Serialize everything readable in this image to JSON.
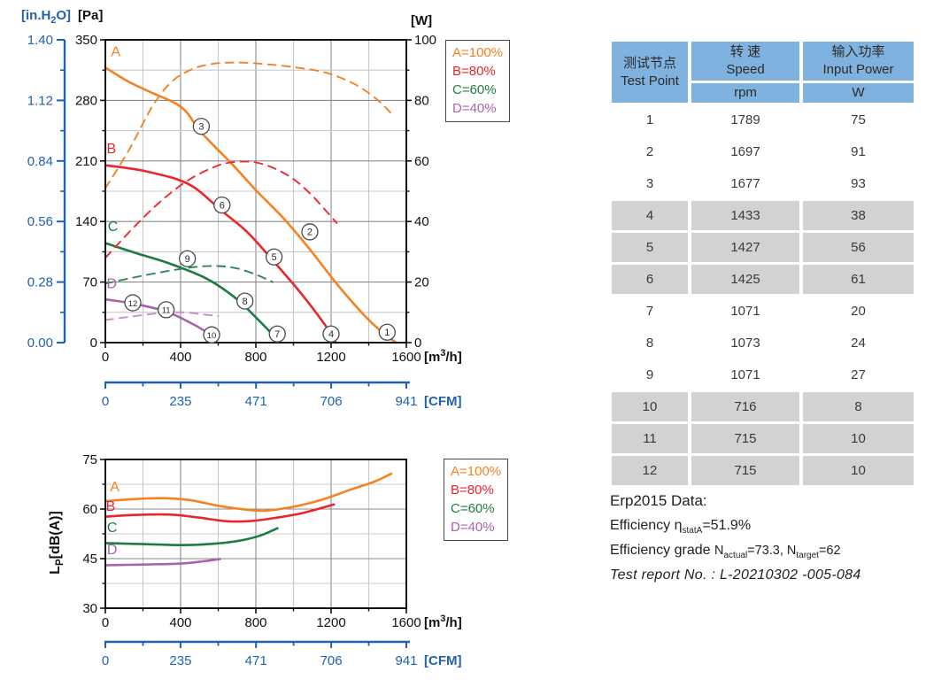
{
  "colors": {
    "A": "#F58220",
    "B": "#E8262C",
    "C": "#1E7B41",
    "D": "#A963AB",
    "A_dash": "#F58220",
    "B_dash": "#ED2B2F",
    "C_dash": "#2E8653",
    "D_dash": "#C490C6",
    "blue_axis": "#2261AE",
    "axis": "#111111",
    "grid_major": "#8A8A8A",
    "grid_minor": "#C8C8C8",
    "table_header_bg": "#7FB2DE",
    "table_shade_bg": "#D2D2D0",
    "marker_stroke": "#4a4a4a"
  },
  "legend_items": [
    {
      "key": "A",
      "label": "A=100%"
    },
    {
      "key": "B",
      "label": "B=80%"
    },
    {
      "key": "C",
      "label": "C=60%"
    },
    {
      "key": "D",
      "label": "D=40%"
    }
  ],
  "chart_data": [
    {
      "type": "line",
      "name": "pressure-and-power-curves",
      "x_axis": {
        "unit_parts": [
          "[m",
          "3",
          "/h]"
        ],
        "min": 0,
        "max": 1600,
        "majors": [
          0,
          400,
          800,
          1200,
          1600
        ],
        "minor_step": 200
      },
      "cfm_axis": {
        "unit": "[CFM]",
        "max": 941,
        "majors": [
          0,
          235,
          471,
          706,
          941
        ]
      },
      "left_axis": {
        "unit": "[Pa]",
        "min": 0,
        "max": 350,
        "majors": [
          0,
          70,
          140,
          210,
          280,
          350
        ],
        "minor_step": 35
      },
      "left_axis2": {
        "unit_parts": [
          "[in.H",
          "2",
          "O]"
        ],
        "labels": [
          "0.00",
          "0.28",
          "0.56",
          "0.84",
          "1.12",
          "1.40"
        ]
      },
      "right_axis": {
        "unit": "[W]",
        "min": 0,
        "max": 100,
        "majors": [
          0,
          20,
          40,
          60,
          80,
          100
        ],
        "minor_step": 10
      },
      "series": [
        {
          "id": "A-pressure",
          "color": "A",
          "axis": "left",
          "dash": false,
          "points": [
            [
              0,
              318
            ],
            [
              120,
              302
            ],
            [
              235,
              290
            ],
            [
              405,
              272
            ],
            [
              510,
              243
            ],
            [
              675,
              206
            ],
            [
              810,
              174
            ],
            [
              950,
              143
            ],
            [
              1090,
              107
            ],
            [
              1230,
              68
            ],
            [
              1370,
              33
            ],
            [
              1460,
              14
            ],
            [
              1545,
              0
            ]
          ]
        },
        {
          "id": "B-pressure",
          "color": "B",
          "axis": "left",
          "dash": false,
          "points": [
            [
              0,
              205
            ],
            [
              216,
              198
            ],
            [
              444,
              183
            ],
            [
              620,
              152
            ],
            [
              758,
              127
            ],
            [
              902,
              92
            ],
            [
              1040,
              57
            ],
            [
              1166,
              21
            ],
            [
              1225,
              0
            ]
          ]
        },
        {
          "id": "C-pressure",
          "color": "C",
          "axis": "left",
          "dash": false,
          "points": [
            [
              0,
              115
            ],
            [
              170,
              103
            ],
            [
              334,
              92
            ],
            [
              538,
              74
            ],
            [
              695,
              51
            ],
            [
              805,
              28
            ],
            [
              891,
              9
            ]
          ]
        },
        {
          "id": "D-pressure",
          "color": "D",
          "axis": "left",
          "dash": false,
          "points": [
            [
              0,
              50
            ],
            [
              150,
              45
            ],
            [
              323,
              36
            ],
            [
              460,
              22
            ],
            [
              555,
              10
            ]
          ]
        },
        {
          "id": "A-power",
          "color": "A_dash",
          "axis": "right",
          "dash": true,
          "points": [
            [
              0,
              51
            ],
            [
              120,
              63
            ],
            [
              250,
              78
            ],
            [
              350,
              86
            ],
            [
              450,
              90
            ],
            [
              560,
              92
            ],
            [
              700,
              92.5
            ],
            [
              850,
              92
            ],
            [
              1000,
              91
            ],
            [
              1150,
              89.5
            ],
            [
              1250,
              87.5
            ],
            [
              1350,
              84.5
            ],
            [
              1450,
              80
            ],
            [
              1530,
              75
            ]
          ]
        },
        {
          "id": "B-power",
          "color": "B_dash",
          "axis": "right",
          "dash": true,
          "points": [
            [
              0,
              28
            ],
            [
              150,
              38
            ],
            [
              300,
              47
            ],
            [
              450,
              54
            ],
            [
              600,
              58.5
            ],
            [
              700,
              59.7
            ],
            [
              800,
              59.5
            ],
            [
              900,
              57.5
            ],
            [
              1000,
              54
            ],
            [
              1100,
              48.5
            ],
            [
              1230,
              39.5
            ]
          ]
        },
        {
          "id": "C-power",
          "color": "C_dash",
          "axis": "right",
          "dash": true,
          "points": [
            [
              0,
              19.5
            ],
            [
              150,
              21.5
            ],
            [
              320,
              23.5
            ],
            [
              480,
              25
            ],
            [
              600,
              25.3
            ],
            [
              700,
              24.5
            ],
            [
              800,
              22.5
            ],
            [
              890,
              20
            ]
          ]
        },
        {
          "id": "D-power",
          "color": "D_dash",
          "axis": "right",
          "dash": true,
          "points": [
            [
              0,
              7.5
            ],
            [
              150,
              8.7
            ],
            [
              300,
              9.8
            ],
            [
              420,
              10
            ],
            [
              520,
              9.3
            ],
            [
              600,
              8.8
            ]
          ]
        }
      ],
      "curve_labels": [
        {
          "text": "A",
          "color": "A",
          "x": 55,
          "y": 331
        },
        {
          "text": "B",
          "color": "B",
          "x": 32,
          "y": 219
        },
        {
          "text": "C",
          "color": "C",
          "x": 40,
          "y": 129
        },
        {
          "text": "D",
          "color": "D",
          "x": 34,
          "y": 63
        }
      ],
      "markers": [
        {
          "n": "1",
          "x": 1498,
          "y": 12
        },
        {
          "n": "2",
          "x": 1087,
          "y": 128
        },
        {
          "n": "3",
          "x": 510,
          "y": 250
        },
        {
          "n": "4",
          "x": 1200,
          "y": 10
        },
        {
          "n": "5",
          "x": 897,
          "y": 99
        },
        {
          "n": "6",
          "x": 620,
          "y": 159
        },
        {
          "n": "7",
          "x": 914,
          "y": 10
        },
        {
          "n": "8",
          "x": 742,
          "y": 48
        },
        {
          "n": "9",
          "x": 436,
          "y": 97
        },
        {
          "n": "10",
          "x": 565,
          "y": 9
        },
        {
          "n": "11",
          "x": 323,
          "y": 38
        },
        {
          "n": "12",
          "x": 146,
          "y": 46
        }
      ]
    },
    {
      "type": "line",
      "name": "noise-level-curves",
      "x_axis": {
        "unit_parts": [
          "[m",
          "3",
          "/h]"
        ],
        "min": 0,
        "max": 1600,
        "majors": [
          0,
          400,
          800,
          1200,
          1600
        ],
        "minor_step": 200
      },
      "cfm_axis": {
        "unit": "[CFM]",
        "max": 941,
        "majors": [
          0,
          235,
          471,
          706,
          941
        ]
      },
      "left_axis": {
        "unit_parts": [
          "L",
          "P",
          "[dB(A)]"
        ],
        "min": 30,
        "max": 75,
        "majors": [
          30,
          45,
          60,
          75
        ],
        "minor_step": 7.5
      },
      "series": [
        {
          "id": "A-noise",
          "color": "A",
          "axis": "left",
          "dash": false,
          "points": [
            [
              0,
              62.4
            ],
            [
              150,
              63
            ],
            [
              300,
              63.3
            ],
            [
              450,
              62.7
            ],
            [
              600,
              61
            ],
            [
              750,
              59.8
            ],
            [
              850,
              59.5
            ],
            [
              1000,
              60.7
            ],
            [
              1150,
              62.8
            ],
            [
              1300,
              65.8
            ],
            [
              1430,
              68.3
            ],
            [
              1520,
              70.7
            ]
          ]
        },
        {
          "id": "B-noise",
          "color": "B",
          "axis": "left",
          "dash": false,
          "points": [
            [
              0,
              57.7
            ],
            [
              150,
              58.2
            ],
            [
              350,
              58.3
            ],
            [
              500,
              57.4
            ],
            [
              650,
              56.3
            ],
            [
              780,
              56.4
            ],
            [
              900,
              57.3
            ],
            [
              1050,
              58.8
            ],
            [
              1215,
              61.4
            ]
          ]
        },
        {
          "id": "C-noise",
          "color": "C",
          "axis": "left",
          "dash": false,
          "points": [
            [
              0,
              49.7
            ],
            [
              200,
              49.4
            ],
            [
              400,
              49.1
            ],
            [
              550,
              49.4
            ],
            [
              700,
              50.3
            ],
            [
              820,
              51.9
            ],
            [
              915,
              54.2
            ]
          ]
        },
        {
          "id": "D-noise",
          "color": "D",
          "axis": "left",
          "dash": false,
          "points": [
            [
              0,
              43
            ],
            [
              200,
              43.2
            ],
            [
              400,
              43.5
            ],
            [
              520,
              44.2
            ],
            [
              610,
              44.9
            ]
          ]
        }
      ],
      "curve_labels": [
        {
          "text": "A",
          "color": "A",
          "x": 50,
          "y": 65.4
        },
        {
          "text": "B",
          "color": "B",
          "x": 28,
          "y": 59.4
        },
        {
          "text": "C",
          "color": "C",
          "x": 36,
          "y": 53.1
        },
        {
          "text": "D",
          "color": "D",
          "x": 36,
          "y": 46.4
        }
      ],
      "markers": []
    }
  ],
  "table": {
    "header": {
      "col1_zh": "测试节点",
      "col1_en": "Test Point",
      "col2_zh": "转 速",
      "col2_en": "Speed",
      "col2_unit": "rpm",
      "col3_zh": "输入功率",
      "col3_en": "Input Power",
      "col3_unit": "W"
    },
    "rows": [
      {
        "point": "1",
        "speed": "1789",
        "power": "75",
        "shade": false
      },
      {
        "point": "2",
        "speed": "1697",
        "power": "91",
        "shade": false
      },
      {
        "point": "3",
        "speed": "1677",
        "power": "93",
        "shade": false
      },
      {
        "point": "4",
        "speed": "1433",
        "power": "38",
        "shade": true
      },
      {
        "point": "5",
        "speed": "1427",
        "power": "56",
        "shade": true
      },
      {
        "point": "6",
        "speed": "1425",
        "power": "61",
        "shade": true
      },
      {
        "point": "7",
        "speed": "1071",
        "power": "20",
        "shade": false
      },
      {
        "point": "8",
        "speed": "1073",
        "power": "24",
        "shade": false
      },
      {
        "point": "9",
        "speed": "1071",
        "power": "27",
        "shade": false
      },
      {
        "point": "10",
        "speed": "716",
        "power": "8",
        "shade": true
      },
      {
        "point": "11",
        "speed": "715",
        "power": "10",
        "shade": true
      },
      {
        "point": "12",
        "speed": "715",
        "power": "10",
        "shade": true
      }
    ]
  },
  "erp": {
    "title": "Erp2015  Data:",
    "eff_pre": "Efficiency η",
    "eff_sub": "statA",
    "eff_post": "=51.9%",
    "grade_pre": "Efficiency grade  ",
    "grade_n1": "N",
    "grade_sub1": "actual",
    "grade_mid": "=73.3, N",
    "grade_sub2": "target",
    "grade_post": "=62",
    "report": "Test report No. : L-20210302 -005-084"
  }
}
